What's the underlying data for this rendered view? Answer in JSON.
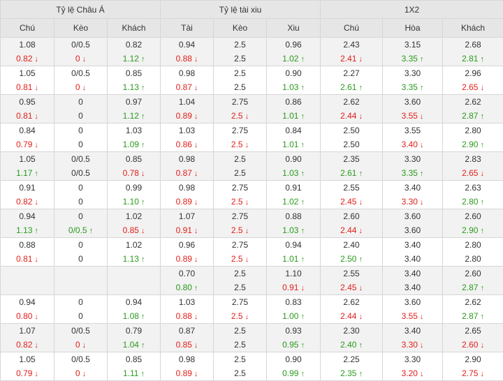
{
  "headers": {
    "groups": [
      "Tỷ lệ Châu Á",
      "Tỷ lệ tài xiu",
      "1X2"
    ],
    "columns": [
      "Chú",
      "Kèo",
      "Khách",
      "Tài",
      "Kèo",
      "Xiu",
      "Chú",
      "Hòa",
      "Khách"
    ]
  },
  "colors": {
    "down": "#e0201b",
    "up": "#2a9a1c",
    "header_bg": "#e6e6e6",
    "alt_row_bg": "#f2f2f2"
  },
  "icons": {
    "up": "arrow-up-icon",
    "down": "arrow-down-icon"
  },
  "rows": [
    {
      "cells": [
        [
          {
            "v": "1.08"
          },
          {
            "v": "0.82",
            "d": "down"
          }
        ],
        [
          {
            "v": "0/0.5"
          },
          {
            "v": "0",
            "d": "down"
          }
        ],
        [
          {
            "v": "0.82"
          },
          {
            "v": "1.12",
            "d": "up"
          }
        ],
        [
          {
            "v": "0.94"
          },
          {
            "v": "0.88",
            "d": "down"
          }
        ],
        [
          {
            "v": "2.5"
          },
          {
            "v": "2.5"
          }
        ],
        [
          {
            "v": "0.96"
          },
          {
            "v": "1.02",
            "d": "up"
          }
        ],
        [
          {
            "v": "2.43"
          },
          {
            "v": "2.41",
            "d": "down"
          }
        ],
        [
          {
            "v": "3.15"
          },
          {
            "v": "3.35",
            "d": "up"
          }
        ],
        [
          {
            "v": "2.68"
          },
          {
            "v": "2.81",
            "d": "up"
          }
        ]
      ]
    },
    {
      "cells": [
        [
          {
            "v": "1.05"
          },
          {
            "v": "0.81",
            "d": "down"
          }
        ],
        [
          {
            "v": "0/0.5"
          },
          {
            "v": "0",
            "d": "down"
          }
        ],
        [
          {
            "v": "0.85"
          },
          {
            "v": "1.13",
            "d": "up"
          }
        ],
        [
          {
            "v": "0.98"
          },
          {
            "v": "0.87",
            "d": "down"
          }
        ],
        [
          {
            "v": "2.5"
          },
          {
            "v": "2.5"
          }
        ],
        [
          {
            "v": "0.90"
          },
          {
            "v": "1.03",
            "d": "up"
          }
        ],
        [
          {
            "v": "2.27"
          },
          {
            "v": "2.61",
            "d": "up"
          }
        ],
        [
          {
            "v": "3.30"
          },
          {
            "v": "3.35",
            "d": "up"
          }
        ],
        [
          {
            "v": "2.96"
          },
          {
            "v": "2.65",
            "d": "down"
          }
        ]
      ]
    },
    {
      "cells": [
        [
          {
            "v": "0.95"
          },
          {
            "v": "0.81",
            "d": "down"
          }
        ],
        [
          {
            "v": "0"
          },
          {
            "v": "0"
          }
        ],
        [
          {
            "v": "0.97"
          },
          {
            "v": "1.12",
            "d": "up"
          }
        ],
        [
          {
            "v": "1.04"
          },
          {
            "v": "0.89",
            "d": "down"
          }
        ],
        [
          {
            "v": "2.75"
          },
          {
            "v": "2.5",
            "d": "down"
          }
        ],
        [
          {
            "v": "0.86"
          },
          {
            "v": "1.01",
            "d": "up"
          }
        ],
        [
          {
            "v": "2.62"
          },
          {
            "v": "2.44",
            "d": "down"
          }
        ],
        [
          {
            "v": "3.60"
          },
          {
            "v": "3.55",
            "d": "down"
          }
        ],
        [
          {
            "v": "2.62"
          },
          {
            "v": "2.87",
            "d": "up"
          }
        ]
      ]
    },
    {
      "cells": [
        [
          {
            "v": "0.84"
          },
          {
            "v": "0.79",
            "d": "down"
          }
        ],
        [
          {
            "v": "0"
          },
          {
            "v": "0"
          }
        ],
        [
          {
            "v": "1.03"
          },
          {
            "v": "1.09",
            "d": "up"
          }
        ],
        [
          {
            "v": "1.03"
          },
          {
            "v": "0.86",
            "d": "down"
          }
        ],
        [
          {
            "v": "2.75"
          },
          {
            "v": "2.5",
            "d": "down"
          }
        ],
        [
          {
            "v": "0.84"
          },
          {
            "v": "1.01",
            "d": "up"
          }
        ],
        [
          {
            "v": "2.50"
          },
          {
            "v": "2.50"
          }
        ],
        [
          {
            "v": "3.55"
          },
          {
            "v": "3.40",
            "d": "down"
          }
        ],
        [
          {
            "v": "2.80"
          },
          {
            "v": "2.90",
            "d": "up"
          }
        ]
      ]
    },
    {
      "cells": [
        [
          {
            "v": "1.05"
          },
          {
            "v": "1.17",
            "d": "up"
          }
        ],
        [
          {
            "v": "0/0.5"
          },
          {
            "v": "0/0.5"
          }
        ],
        [
          {
            "v": "0.85"
          },
          {
            "v": "0.78",
            "d": "down"
          }
        ],
        [
          {
            "v": "0.98"
          },
          {
            "v": "0.87",
            "d": "down"
          }
        ],
        [
          {
            "v": "2.5"
          },
          {
            "v": "2.5"
          }
        ],
        [
          {
            "v": "0.90"
          },
          {
            "v": "1.03",
            "d": "up"
          }
        ],
        [
          {
            "v": "2.35"
          },
          {
            "v": "2.61",
            "d": "up"
          }
        ],
        [
          {
            "v": "3.30"
          },
          {
            "v": "3.35",
            "d": "up"
          }
        ],
        [
          {
            "v": "2.83"
          },
          {
            "v": "2.65",
            "d": "down"
          }
        ]
      ]
    },
    {
      "cells": [
        [
          {
            "v": "0.91"
          },
          {
            "v": "0.82",
            "d": "down"
          }
        ],
        [
          {
            "v": "0"
          },
          {
            "v": "0"
          }
        ],
        [
          {
            "v": "0.99"
          },
          {
            "v": "1.10",
            "d": "up"
          }
        ],
        [
          {
            "v": "0.98"
          },
          {
            "v": "0.89",
            "d": "down"
          }
        ],
        [
          {
            "v": "2.75"
          },
          {
            "v": "2.5",
            "d": "down"
          }
        ],
        [
          {
            "v": "0.91"
          },
          {
            "v": "1.02",
            "d": "up"
          }
        ],
        [
          {
            "v": "2.55"
          },
          {
            "v": "2.45",
            "d": "down"
          }
        ],
        [
          {
            "v": "3.40"
          },
          {
            "v": "3.30",
            "d": "down"
          }
        ],
        [
          {
            "v": "2.63"
          },
          {
            "v": "2.80",
            "d": "up"
          }
        ]
      ]
    },
    {
      "cells": [
        [
          {
            "v": "0.94"
          },
          {
            "v": "1.13",
            "d": "up"
          }
        ],
        [
          {
            "v": "0"
          },
          {
            "v": "0/0.5",
            "d": "up"
          }
        ],
        [
          {
            "v": "1.02"
          },
          {
            "v": "0.85",
            "d": "down"
          }
        ],
        [
          {
            "v": "1.07"
          },
          {
            "v": "0.91",
            "d": "down"
          }
        ],
        [
          {
            "v": "2.75"
          },
          {
            "v": "2.5",
            "d": "down"
          }
        ],
        [
          {
            "v": "0.88"
          },
          {
            "v": "1.03",
            "d": "up"
          }
        ],
        [
          {
            "v": "2.60"
          },
          {
            "v": "2.44",
            "d": "down"
          }
        ],
        [
          {
            "v": "3.60"
          },
          {
            "v": "3.60"
          }
        ],
        [
          {
            "v": "2.60"
          },
          {
            "v": "2.90",
            "d": "up"
          }
        ]
      ]
    },
    {
      "cells": [
        [
          {
            "v": "0.88"
          },
          {
            "v": "0.81",
            "d": "down"
          }
        ],
        [
          {
            "v": "0"
          },
          {
            "v": "0"
          }
        ],
        [
          {
            "v": "1.02"
          },
          {
            "v": "1.13",
            "d": "up"
          }
        ],
        [
          {
            "v": "0.96"
          },
          {
            "v": "0.89",
            "d": "down"
          }
        ],
        [
          {
            "v": "2.75"
          },
          {
            "v": "2.5",
            "d": "down"
          }
        ],
        [
          {
            "v": "0.94"
          },
          {
            "v": "1.01",
            "d": "up"
          }
        ],
        [
          {
            "v": "2.40"
          },
          {
            "v": "2.50",
            "d": "up"
          }
        ],
        [
          {
            "v": "3.40"
          },
          {
            "v": "3.40"
          }
        ],
        [
          {
            "v": "2.80"
          },
          {
            "v": "2.80"
          }
        ]
      ]
    },
    {
      "cells": [
        [],
        [],
        [],
        [
          {
            "v": "0.70"
          },
          {
            "v": "0.80",
            "d": "up"
          }
        ],
        [
          {
            "v": "2.5"
          },
          {
            "v": "2.5"
          }
        ],
        [
          {
            "v": "1.10"
          },
          {
            "v": "0.91",
            "d": "down"
          }
        ],
        [
          {
            "v": "2.55"
          },
          {
            "v": "2.45",
            "d": "down"
          }
        ],
        [
          {
            "v": "3.40"
          },
          {
            "v": "3.40"
          }
        ],
        [
          {
            "v": "2.60"
          },
          {
            "v": "2.87",
            "d": "up"
          }
        ]
      ]
    },
    {
      "cells": [
        [
          {
            "v": "0.94"
          },
          {
            "v": "0.80",
            "d": "down"
          }
        ],
        [
          {
            "v": "0"
          },
          {
            "v": "0"
          }
        ],
        [
          {
            "v": "0.94"
          },
          {
            "v": "1.08",
            "d": "up"
          }
        ],
        [
          {
            "v": "1.03"
          },
          {
            "v": "0.88",
            "d": "down"
          }
        ],
        [
          {
            "v": "2.75"
          },
          {
            "v": "2.5",
            "d": "down"
          }
        ],
        [
          {
            "v": "0.83"
          },
          {
            "v": "1.00",
            "d": "up"
          }
        ],
        [
          {
            "v": "2.62"
          },
          {
            "v": "2.44",
            "d": "down"
          }
        ],
        [
          {
            "v": "3.60"
          },
          {
            "v": "3.55",
            "d": "down"
          }
        ],
        [
          {
            "v": "2.62"
          },
          {
            "v": "2.87",
            "d": "up"
          }
        ]
      ]
    },
    {
      "cells": [
        [
          {
            "v": "1.07"
          },
          {
            "v": "0.82",
            "d": "down"
          }
        ],
        [
          {
            "v": "0/0.5"
          },
          {
            "v": "0",
            "d": "down"
          }
        ],
        [
          {
            "v": "0.79"
          },
          {
            "v": "1.04",
            "d": "up"
          }
        ],
        [
          {
            "v": "0.87"
          },
          {
            "v": "0.85",
            "d": "down"
          }
        ],
        [
          {
            "v": "2.5"
          },
          {
            "v": "2.5"
          }
        ],
        [
          {
            "v": "0.93"
          },
          {
            "v": "0.95",
            "d": "up"
          }
        ],
        [
          {
            "v": "2.30"
          },
          {
            "v": "2.40",
            "d": "up"
          }
        ],
        [
          {
            "v": "3.40"
          },
          {
            "v": "3.30",
            "d": "down"
          }
        ],
        [
          {
            "v": "2.65"
          },
          {
            "v": "2.60",
            "d": "down"
          }
        ]
      ]
    },
    {
      "cells": [
        [
          {
            "v": "1.05"
          },
          {
            "v": "0.79",
            "d": "down"
          }
        ],
        [
          {
            "v": "0/0.5"
          },
          {
            "v": "0",
            "d": "down"
          }
        ],
        [
          {
            "v": "0.85"
          },
          {
            "v": "1.11",
            "d": "up"
          }
        ],
        [
          {
            "v": "0.98"
          },
          {
            "v": "0.89",
            "d": "down"
          }
        ],
        [
          {
            "v": "2.5"
          },
          {
            "v": "2.5"
          }
        ],
        [
          {
            "v": "0.90"
          },
          {
            "v": "0.99",
            "d": "up"
          }
        ],
        [
          {
            "v": "2.25"
          },
          {
            "v": "2.35",
            "d": "up"
          }
        ],
        [
          {
            "v": "3.30"
          },
          {
            "v": "3.20",
            "d": "down"
          }
        ],
        [
          {
            "v": "2.90"
          },
          {
            "v": "2.75",
            "d": "down"
          }
        ]
      ]
    }
  ]
}
